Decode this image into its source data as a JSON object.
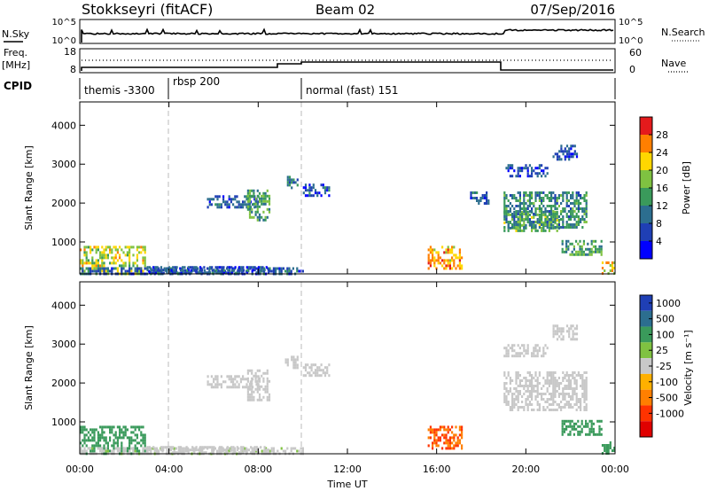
{
  "header": {
    "station": "Stokkseyri (fitACF)",
    "beam": "Beam 02",
    "date": "07/Sep/2016"
  },
  "noise_panel": {
    "left_label": "N.Sky",
    "left_ticks": [
      "10^5",
      "10^0"
    ],
    "right_ticks": [
      "10^5",
      "10^0"
    ],
    "right_label": "N.Search"
  },
  "freq_panel": {
    "left_label_1": "Freq.",
    "left_label_2": "[MHz]",
    "left_ticks": [
      "18",
      "8"
    ],
    "right_ticks": [
      "60",
      "0"
    ],
    "right_label": "Nave"
  },
  "cpid": {
    "label": "CPID",
    "segments": [
      {
        "name": "themis -3300",
        "start_hour": 0,
        "end_hour": 4
      },
      {
        "name": "rbsp 200",
        "start_hour": 4,
        "end_hour": 10
      },
      {
        "name": "normal (fast) 151",
        "start_hour": 10,
        "end_hour": 24
      }
    ]
  },
  "axes": {
    "ylabel": "Slant Range [km]",
    "yticks": [
      "4000",
      "3000",
      "2000",
      "1000"
    ],
    "xticks": [
      "00:00",
      "04:00",
      "08:00",
      "12:00",
      "16:00",
      "20:00",
      "00:00"
    ],
    "xlabel": "Time UT"
  },
  "power_colorbar": {
    "label": "Power [dB]",
    "ticks": [
      "28",
      "24",
      "20",
      "16",
      "12",
      "8",
      "4"
    ],
    "colors": [
      "#e41a1c",
      "#ff7f00",
      "#ffd700",
      "#7fc241",
      "#3a9a5b",
      "#2c6e8f",
      "#1f3fb5",
      "#0000ff"
    ]
  },
  "velocity_colorbar": {
    "label": "Velocity [m s⁻¹]",
    "ticks": [
      "1000",
      "500",
      "100",
      "25",
      "-25",
      "-100",
      "-500",
      "-1000"
    ],
    "colors": [
      "#1f3fb5",
      "#2c6e8f",
      "#3a9a5b",
      "#7fc241",
      "#c8c8c8",
      "#ffb000",
      "#ff7f00",
      "#ff3300",
      "#e00000"
    ]
  },
  "chart_data": [
    {
      "type": "heatmap",
      "panel": "power",
      "title": "",
      "xlabel": "Time UT",
      "ylabel": "Slant Range [km]",
      "xlim": [
        0,
        24
      ],
      "ylim": [
        180,
        4600
      ],
      "colorbar_label": "Power [dB]",
      "regions": [
        {
          "t0": 0.0,
          "t1": 2.9,
          "r0": 180,
          "r1": 900,
          "value": 18
        },
        {
          "t0": 0.0,
          "t1": 10.0,
          "r0": 180,
          "r1": 350,
          "value": 6
        },
        {
          "t0": 3.0,
          "t1": 8.5,
          "r0": 180,
          "r1": 380,
          "value": 5
        },
        {
          "t0": 3.2,
          "t1": 7.5,
          "r0": 180,
          "r1": 300,
          "value": 6
        },
        {
          "t0": 5.7,
          "t1": 8.0,
          "r0": 1900,
          "r1": 2200,
          "value": 6
        },
        {
          "t0": 7.5,
          "t1": 8.5,
          "r0": 1550,
          "r1": 2350,
          "value": 12
        },
        {
          "t0": 9.2,
          "t1": 9.8,
          "r0": 2400,
          "r1": 2700,
          "value": 10
        },
        {
          "t0": 10.0,
          "t1": 11.2,
          "r0": 2200,
          "r1": 2500,
          "value": 6
        },
        {
          "t0": 15.6,
          "t1": 17.1,
          "r0": 300,
          "r1": 900,
          "value": 22
        },
        {
          "t0": 17.5,
          "t1": 18.3,
          "r0": 2000,
          "r1": 2300,
          "value": 6
        },
        {
          "t0": 19.0,
          "t1": 21.5,
          "r0": 1300,
          "r1": 1800,
          "value": 14
        },
        {
          "t0": 19.0,
          "t1": 22.7,
          "r0": 1400,
          "r1": 2300,
          "value": 10
        },
        {
          "t0": 19.0,
          "t1": 21.0,
          "r0": 2700,
          "r1": 3000,
          "value": 5
        },
        {
          "t0": 21.2,
          "t1": 22.3,
          "r0": 3100,
          "r1": 3500,
          "value": 5
        },
        {
          "t0": 21.6,
          "t1": 23.4,
          "r0": 700,
          "r1": 1050,
          "value": 12
        },
        {
          "t0": 23.4,
          "t1": 24.0,
          "r0": 180,
          "r1": 500,
          "value": 20
        }
      ]
    },
    {
      "type": "heatmap",
      "panel": "velocity",
      "title": "",
      "xlabel": "Time UT",
      "ylabel": "Slant Range [km]",
      "xlim": [
        0,
        24
      ],
      "ylim": [
        180,
        4600
      ],
      "colorbar_label": "Velocity [m s⁻¹]",
      "regions": [
        {
          "t0": 0.0,
          "t1": 2.9,
          "r0": 180,
          "r1": 900,
          "value": 120
        },
        {
          "t0": 0.0,
          "t1": 10.0,
          "r0": 180,
          "r1": 350,
          "value": 10
        },
        {
          "t0": 3.0,
          "t1": 8.5,
          "r0": 180,
          "r1": 380,
          "value": 0
        },
        {
          "t0": 5.7,
          "t1": 8.0,
          "r0": 1900,
          "r1": 2200,
          "value": 0
        },
        {
          "t0": 7.5,
          "t1": 8.5,
          "r0": 1550,
          "r1": 2350,
          "value": 5
        },
        {
          "t0": 9.2,
          "t1": 9.8,
          "r0": 2400,
          "r1": 2700,
          "value": 0
        },
        {
          "t0": 10.0,
          "t1": 11.2,
          "r0": 2200,
          "r1": 2500,
          "value": 0
        },
        {
          "t0": 15.6,
          "t1": 17.1,
          "r0": 300,
          "r1": 900,
          "value": -300
        },
        {
          "t0": 19.0,
          "t1": 22.7,
          "r0": 1300,
          "r1": 2300,
          "value": 0
        },
        {
          "t0": 19.0,
          "t1": 21.0,
          "r0": 2700,
          "r1": 3000,
          "value": 0
        },
        {
          "t0": 21.2,
          "t1": 22.3,
          "r0": 3100,
          "r1": 3500,
          "value": 0
        },
        {
          "t0": 21.6,
          "t1": 23.4,
          "r0": 700,
          "r1": 1050,
          "value": 200
        },
        {
          "t0": 23.4,
          "t1": 24.0,
          "r0": 180,
          "r1": 500,
          "value": 150
        }
      ]
    }
  ]
}
